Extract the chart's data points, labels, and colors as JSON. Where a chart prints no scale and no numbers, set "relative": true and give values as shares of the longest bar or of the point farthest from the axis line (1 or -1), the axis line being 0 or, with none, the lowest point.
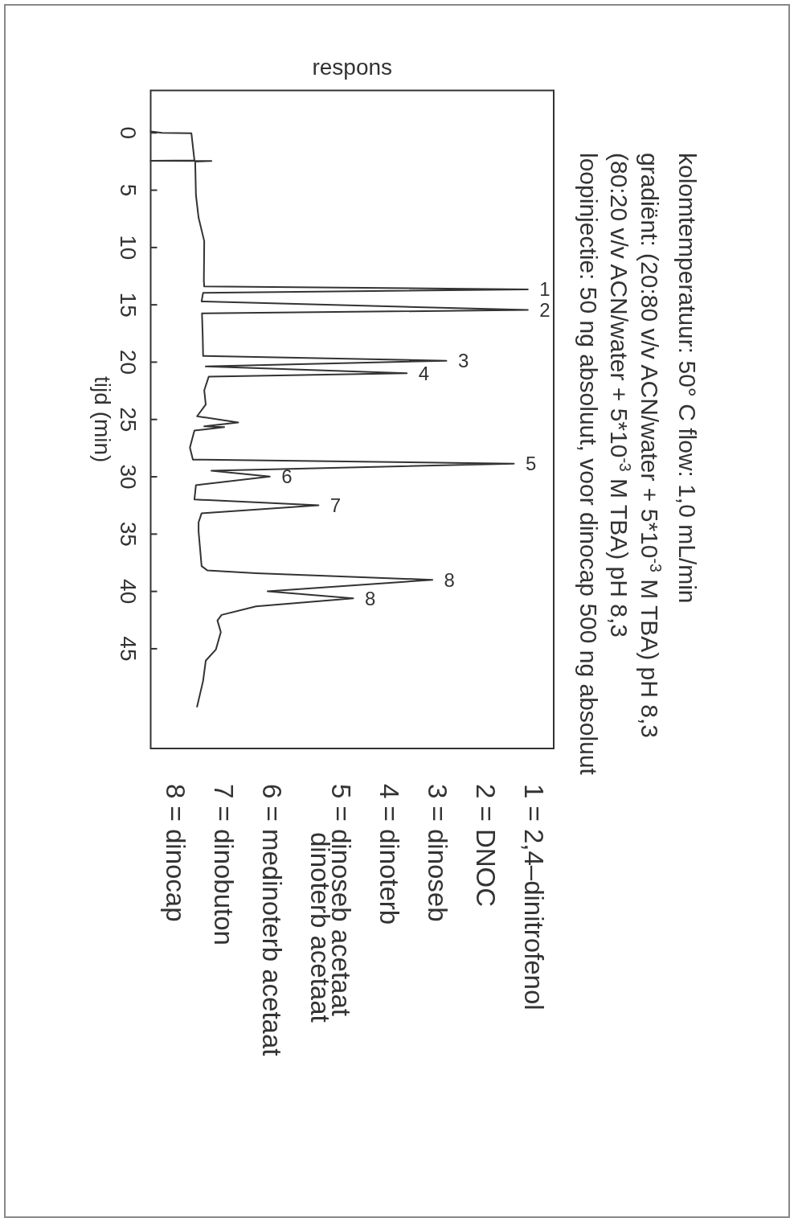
{
  "chart_data": {
    "type": "line",
    "relative": true,
    "title": "kolomtemperatuur: 50° C  flow: 1,0 mL/min",
    "subtitle": "gradiënt: (20:80 v/v ACN/water + 5*10$^{-3}$ M TBA) pH 8,3\n(80:20 v/v ACN/water + 5*10$^{-3}$ M TBA) pH 8,3\nloopinjectie: 50 ng absoluut, voor dinocap 500 ng absoluut",
    "orientation": "horizontal",
    "ylabel": "tijd (min)",
    "xlabel": "respons",
    "ylim": [
      53.7,
      -3.7
    ],
    "yticks": [
      0,
      5,
      10,
      15,
      20,
      25,
      30,
      35,
      40,
      45
    ],
    "series": [
      {
        "color": "#333333",
        "x": [
          -0.13,
          0,
          0.04,
          2.4,
          2.43,
          2.46,
          2.5,
          5.43,
          7.4,
          9.44,
          12.95,
          13.4,
          13.65,
          13.95,
          14.7,
          15.45,
          15.75,
          17.8,
          19.46,
          19.88,
          20.38,
          20.96,
          21.26,
          22.46,
          23.7,
          24.72,
          25.27,
          25.6,
          25.67,
          25.97,
          27.46,
          28.5,
          28.85,
          29.47,
          29.98,
          30.73,
          31.98,
          32.48,
          33.18,
          33.98,
          34.78,
          37.79,
          38.16,
          38.41,
          38.99,
          39.99,
          40.6,
          41.3,
          42.05,
          42.54,
          43.55,
          45.06,
          46.04,
          47.8,
          50.06
        ],
        "values": [
          0,
          0.03,
          0.108,
          0.116,
          0,
          0.161,
          0.118,
          0.12,
          0.127,
          0.142,
          0.141,
          0.142,
          1,
          0.139,
          0.135,
          1,
          0.136,
          0.138,
          0.139,
          0.784,
          0.146,
          0.679,
          0.154,
          0.142,
          0.146,
          0.123,
          0.232,
          0.142,
          0.195,
          0.116,
          0.104,
          0.112,
          0.963,
          0.161,
          0.316,
          0.12,
          0.116,
          0.445,
          0.135,
          0.127,
          0.127,
          0.135,
          0.15,
          0.279,
          0.747,
          0.31,
          0.537,
          0.279,
          0.188,
          0.177,
          0.186,
          0.173,
          0.146,
          0.139,
          0.123
        ]
      }
    ],
    "annotations": [
      {
        "text": "1",
        "y": 13.65,
        "x": 1
      },
      {
        "text": "2",
        "y": 15.45,
        "x": 1
      },
      {
        "text": "3",
        "y": 19.88,
        "x": 0.784
      },
      {
        "text": "4",
        "y": 20.96,
        "x": 0.679
      },
      {
        "text": "5",
        "y": 28.85,
        "x": 0.963
      },
      {
        "text": "6",
        "y": 29.98,
        "x": 0.316
      },
      {
        "text": "7",
        "y": 32.48,
        "x": 0.445
      },
      {
        "text": "8",
        "y": 38.99,
        "x": 0.747
      },
      {
        "text": "8",
        "y": 40.6,
        "x": 0.537
      },
      "1 = 2,4–dinitrofenol",
      "2 = DNOC",
      "3 = dinoseb",
      "4 = dinoterb",
      "5 = dinoseb acetaat\ndinoterb acetaat",
      "6 = medinoterb acetaat",
      "7 = dinobuton",
      "8 = dinocap"
    ]
  }
}
